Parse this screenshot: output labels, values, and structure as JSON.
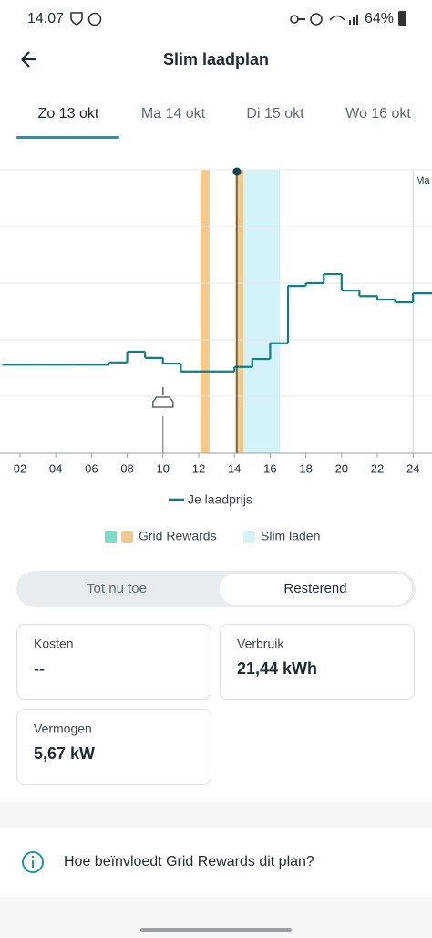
{
  "status_bar": {
    "time": "14:07",
    "battery": "64%"
  },
  "header": {
    "title": "Slim laadplan"
  },
  "tabs": [
    "Zo 13 okt",
    "Ma 14 okt",
    "Di 15 okt",
    "Wo 16 okt"
  ],
  "chart_data": {
    "type": "step",
    "x": [
      1,
      2,
      3,
      4,
      5,
      6,
      7,
      8,
      9,
      10,
      11,
      12,
      13,
      14,
      15,
      16,
      17,
      18,
      19,
      20,
      21,
      22,
      23,
      24
    ],
    "series": [
      {
        "name": "Je laadprijs",
        "color": "#0f7f84",
        "values": [
          1.56,
          1.56,
          1.56,
          1.56,
          1.56,
          1.56,
          1.6,
          1.79,
          1.68,
          1.58,
          1.44,
          1.44,
          1.44,
          1.52,
          1.66,
          1.94,
          2.95,
          3.0,
          3.16,
          2.87,
          2.77,
          2.71,
          2.66,
          2.82
        ]
      }
    ],
    "xlim": [
      0.88,
      25.06
    ],
    "xticks": [
      {
        "value": 2,
        "label": "02"
      },
      {
        "value": 4,
        "label": "04"
      },
      {
        "value": 6,
        "label": "06"
      },
      {
        "value": 8,
        "label": "08"
      },
      10,
      12,
      14,
      16,
      18,
      20,
      22,
      24
    ],
    "ylim": [
      0,
      5
    ],
    "yticks": [
      0,
      1,
      2,
      3,
      4,
      5
    ],
    "grid": true,
    "bands": [
      {
        "name": "Grid Rewards",
        "colors": [
          "#7fdcc9",
          "#f5c98a"
        ],
        "ranges": [
          [
            12.1,
            12.6
          ],
          [
            14.05,
            14.5
          ]
        ]
      },
      {
        "name": "Slim laden",
        "colors": [
          "#d4f3f8"
        ],
        "ranges": [
          [
            14.05,
            16.55
          ]
        ]
      }
    ],
    "now_marker": 14.14,
    "car_marker": 10,
    "day_marker": {
      "x": 24,
      "label": "Ma"
    }
  },
  "toggle": {
    "options": [
      "Tot nu toe",
      "Resterend"
    ],
    "active": 1
  },
  "cards": [
    {
      "label": "Kosten",
      "value": "--"
    },
    {
      "label": "Verbruik",
      "value": "21,44 kWh"
    },
    {
      "label": "Vermogen",
      "value": "5,67 kW"
    }
  ],
  "info_row": "Hoe beïnvloedt Grid Rewards dit plan?"
}
